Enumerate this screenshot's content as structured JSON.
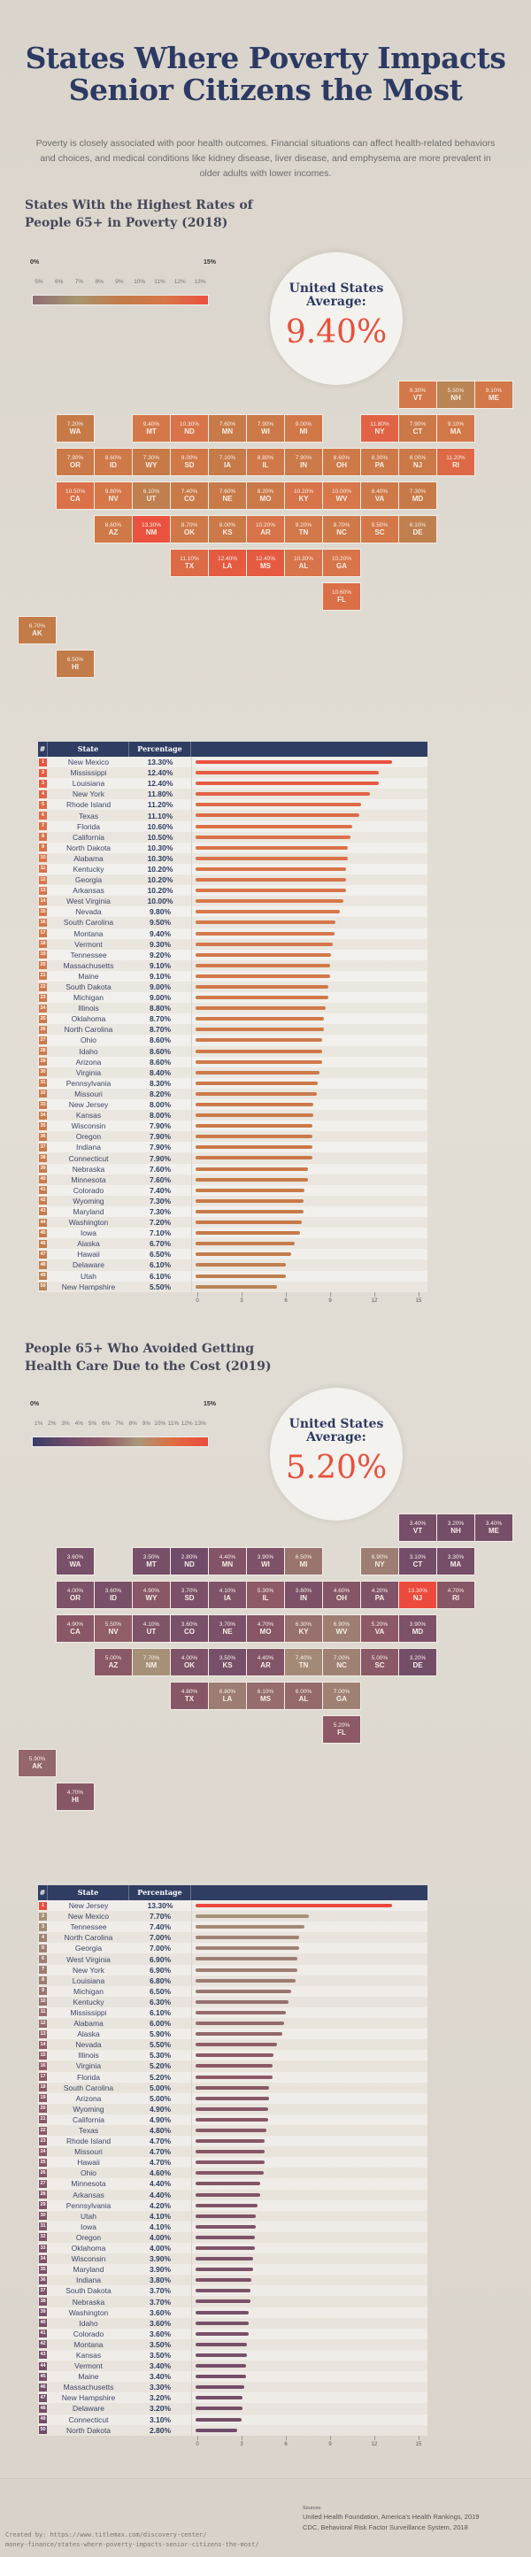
{
  "title": "States Where Poverty Impacts Senior Citizens the Most",
  "intro": "Poverty is closely associated with poor health outcomes. Financial situations can affect health-related behaviors and choices, and medical conditions like kidney disease, liver disease, and emphysema are more prevalent in older adults with lower incomes.",
  "colors": {
    "background": "#dfdad2",
    "title": "#2c3a63",
    "table_header": "#2f3d62",
    "highlight": "#e8503d"
  },
  "chart_data": [
    {
      "type": "table",
      "title": "States With the Highest Rates of People 65+ in Poverty (2018)",
      "average_label": "United States Average:",
      "average_value": "9.40%",
      "legend": {
        "min_label": "0%",
        "max_label": "15%",
        "ticks": [
          "5%",
          "6%",
          "7%",
          "8%",
          "9%",
          "10%",
          "11%",
          "12%",
          "13%"
        ],
        "colors": [
          "#8f6e73",
          "#a8956f",
          "#c37b48",
          "#d7774a",
          "#ea513f"
        ]
      },
      "columns": [
        "#",
        "State",
        "Percentage"
      ],
      "axis_ticks": [
        0,
        3,
        6,
        9,
        12,
        15
      ],
      "xlim": [
        0,
        15
      ],
      "rows": [
        {
          "rank": 1,
          "state": "New Mexico",
          "abbr": "NM",
          "value": 13.3,
          "label": "13.30%"
        },
        {
          "rank": 2,
          "state": "Mississippi",
          "abbr": "MS",
          "value": 12.4,
          "label": "12.40%"
        },
        {
          "rank": 3,
          "state": "Louisiana",
          "abbr": "LA",
          "value": 12.4,
          "label": "12.40%"
        },
        {
          "rank": 4,
          "state": "New York",
          "abbr": "NY",
          "value": 11.8,
          "label": "11.80%"
        },
        {
          "rank": 5,
          "state": "Rhode Island",
          "abbr": "RI",
          "value": 11.2,
          "label": "11.20%"
        },
        {
          "rank": 6,
          "state": "Texas",
          "abbr": "TX",
          "value": 11.1,
          "label": "11.10%"
        },
        {
          "rank": 7,
          "state": "Florida",
          "abbr": "FL",
          "value": 10.6,
          "label": "10.60%"
        },
        {
          "rank": 8,
          "state": "California",
          "abbr": "CA",
          "value": 10.5,
          "label": "10.50%"
        },
        {
          "rank": 9,
          "state": "North Dakota",
          "abbr": "ND",
          "value": 10.3,
          "label": "10.30%"
        },
        {
          "rank": 10,
          "state": "Alabama",
          "abbr": "AL",
          "value": 10.3,
          "label": "10.30%"
        },
        {
          "rank": 11,
          "state": "Kentucky",
          "abbr": "KY",
          "value": 10.2,
          "label": "10.20%"
        },
        {
          "rank": 12,
          "state": "Georgia",
          "abbr": "GA",
          "value": 10.2,
          "label": "10.20%"
        },
        {
          "rank": 13,
          "state": "Arkansas",
          "abbr": "AR",
          "value": 10.2,
          "label": "10.20%"
        },
        {
          "rank": 14,
          "state": "West Virginia",
          "abbr": "WV",
          "value": 10.0,
          "label": "10.00%"
        },
        {
          "rank": 15,
          "state": "Nevada",
          "abbr": "NV",
          "value": 9.8,
          "label": "9.80%"
        },
        {
          "rank": 16,
          "state": "South Carolina",
          "abbr": "SC",
          "value": 9.5,
          "label": "9.50%"
        },
        {
          "rank": 17,
          "state": "Montana",
          "abbr": "MT",
          "value": 9.4,
          "label": "9.40%"
        },
        {
          "rank": 18,
          "state": "Vermont",
          "abbr": "VT",
          "value": 9.3,
          "label": "9.30%"
        },
        {
          "rank": 19,
          "state": "Tennessee",
          "abbr": "TN",
          "value": 9.2,
          "label": "9.20%"
        },
        {
          "rank": 20,
          "state": "Massachusetts",
          "abbr": "MA",
          "value": 9.1,
          "label": "9.10%"
        },
        {
          "rank": 21,
          "state": "Maine",
          "abbr": "ME",
          "value": 9.1,
          "label": "9.10%"
        },
        {
          "rank": 22,
          "state": "South Dakota",
          "abbr": "SD",
          "value": 9.0,
          "label": "9.00%"
        },
        {
          "rank": 23,
          "state": "Michigan",
          "abbr": "MI",
          "value": 9.0,
          "label": "9.00%"
        },
        {
          "rank": 24,
          "state": "Illinois",
          "abbr": "IL",
          "value": 8.8,
          "label": "8.80%"
        },
        {
          "rank": 25,
          "state": "Oklahoma",
          "abbr": "OK",
          "value": 8.7,
          "label": "8.70%"
        },
        {
          "rank": 26,
          "state": "North Carolina",
          "abbr": "NC",
          "value": 8.7,
          "label": "8.70%"
        },
        {
          "rank": 27,
          "state": "Ohio",
          "abbr": "OH",
          "value": 8.6,
          "label": "8.60%"
        },
        {
          "rank": 28,
          "state": "Idaho",
          "abbr": "ID",
          "value": 8.6,
          "label": "8.60%"
        },
        {
          "rank": 29,
          "state": "Arizona",
          "abbr": "AZ",
          "value": 8.6,
          "label": "8.60%"
        },
        {
          "rank": 30,
          "state": "Virginia",
          "abbr": "VA",
          "value": 8.4,
          "label": "8.40%"
        },
        {
          "rank": 31,
          "state": "Pennsylvania",
          "abbr": "PA",
          "value": 8.3,
          "label": "8.30%"
        },
        {
          "rank": 32,
          "state": "Missouri",
          "abbr": "MO",
          "value": 8.2,
          "label": "8.20%"
        },
        {
          "rank": 33,
          "state": "New Jersey",
          "abbr": "NJ",
          "value": 8.0,
          "label": "8.00%"
        },
        {
          "rank": 34,
          "state": "Kansas",
          "abbr": "KS",
          "value": 8.0,
          "label": "8.00%"
        },
        {
          "rank": 35,
          "state": "Wisconsin",
          "abbr": "WI",
          "value": 7.9,
          "label": "7.90%"
        },
        {
          "rank": 36,
          "state": "Oregon",
          "abbr": "OR",
          "value": 7.9,
          "label": "7.90%"
        },
        {
          "rank": 37,
          "state": "Indiana",
          "abbr": "IN",
          "value": 7.9,
          "label": "7.90%"
        },
        {
          "rank": 38,
          "state": "Connecticut",
          "abbr": "CT",
          "value": 7.9,
          "label": "7.90%"
        },
        {
          "rank": 39,
          "state": "Nebraska",
          "abbr": "NE",
          "value": 7.6,
          "label": "7.60%"
        },
        {
          "rank": 40,
          "state": "Minnesota",
          "abbr": "MN",
          "value": 7.6,
          "label": "7.60%"
        },
        {
          "rank": 41,
          "state": "Colorado",
          "abbr": "CO",
          "value": 7.4,
          "label": "7.40%"
        },
        {
          "rank": 42,
          "state": "Wyoming",
          "abbr": "WY",
          "value": 7.3,
          "label": "7.30%"
        },
        {
          "rank": 43,
          "state": "Maryland",
          "abbr": "MD",
          "value": 7.3,
          "label": "7.30%"
        },
        {
          "rank": 44,
          "state": "Washington",
          "abbr": "WA",
          "value": 7.2,
          "label": "7.20%"
        },
        {
          "rank": 45,
          "state": "Iowa",
          "abbr": "IA",
          "value": 7.1,
          "label": "7.10%"
        },
        {
          "rank": 46,
          "state": "Alaska",
          "abbr": "AK",
          "value": 6.7,
          "label": "6.70%"
        },
        {
          "rank": 47,
          "state": "Hawaii",
          "abbr": "HI",
          "value": 6.5,
          "label": "6.50%"
        },
        {
          "rank": 48,
          "state": "Delaware",
          "abbr": "DE",
          "value": 6.1,
          "label": "6.10%"
        },
        {
          "rank": 49,
          "state": "Utah",
          "abbr": "UT",
          "value": 6.1,
          "label": "6.10%"
        },
        {
          "rank": 50,
          "state": "New Hampshire",
          "abbr": "NH",
          "value": 5.5,
          "label": "5.50%"
        }
      ]
    },
    {
      "type": "table",
      "title": "People 65+ Who Avoided Getting Health Care Due to the Cost (2019)",
      "average_label": "United States Average:",
      "average_value": "5.20%",
      "legend": {
        "min_label": "0%",
        "max_label": "15%",
        "ticks": [
          "1%",
          "2%",
          "3%",
          "4%",
          "5%",
          "6%",
          "7%",
          "8%",
          "9%",
          "10%",
          "11%",
          "12%",
          "13%"
        ],
        "colors": [
          "#3a3d66",
          "#6e4a6a",
          "#8e5a66",
          "#a9977a",
          "#e06c40",
          "#ec4a3d"
        ]
      },
      "columns": [
        "#",
        "State",
        "Percentage"
      ],
      "axis_ticks": [
        0,
        3,
        6,
        9,
        12,
        15
      ],
      "xlim": [
        0,
        15
      ],
      "rows": [
        {
          "rank": 1,
          "state": "New Jersey",
          "abbr": "NJ",
          "value": 13.3,
          "label": "13.30%"
        },
        {
          "rank": 2,
          "state": "New Mexico",
          "abbr": "NM",
          "value": 7.7,
          "label": "7.70%"
        },
        {
          "rank": 3,
          "state": "Tennessee",
          "abbr": "TN",
          "value": 7.4,
          "label": "7.40%"
        },
        {
          "rank": 4,
          "state": "North Carolina",
          "abbr": "NC",
          "value": 7.0,
          "label": "7.00%"
        },
        {
          "rank": 5,
          "state": "Georgia",
          "abbr": "GA",
          "value": 7.0,
          "label": "7.00%"
        },
        {
          "rank": 6,
          "state": "West Virginia",
          "abbr": "WV",
          "value": 6.9,
          "label": "6.90%"
        },
        {
          "rank": 7,
          "state": "New York",
          "abbr": "NY",
          "value": 6.9,
          "label": "6.90%"
        },
        {
          "rank": 8,
          "state": "Louisiana",
          "abbr": "LA",
          "value": 6.8,
          "label": "6.80%"
        },
        {
          "rank": 9,
          "state": "Michigan",
          "abbr": "MI",
          "value": 6.5,
          "label": "6.50%"
        },
        {
          "rank": 10,
          "state": "Kentucky",
          "abbr": "KY",
          "value": 6.3,
          "label": "6.30%"
        },
        {
          "rank": 11,
          "state": "Mississippi",
          "abbr": "MS",
          "value": 6.1,
          "label": "6.10%"
        },
        {
          "rank": 12,
          "state": "Alabama",
          "abbr": "AL",
          "value": 6.0,
          "label": "6.00%"
        },
        {
          "rank": 13,
          "state": "Alaska",
          "abbr": "AK",
          "value": 5.9,
          "label": "5.90%"
        },
        {
          "rank": 14,
          "state": "Nevada",
          "abbr": "NV",
          "value": 5.5,
          "label": "5.50%"
        },
        {
          "rank": 15,
          "state": "Illinois",
          "abbr": "IL",
          "value": 5.3,
          "label": "5.30%"
        },
        {
          "rank": 16,
          "state": "Virginia",
          "abbr": "VA",
          "value": 5.2,
          "label": "5.20%"
        },
        {
          "rank": 17,
          "state": "Florida",
          "abbr": "FL",
          "value": 5.2,
          "label": "5.20%"
        },
        {
          "rank": 18,
          "state": "South Carolina",
          "abbr": "SC",
          "value": 5.0,
          "label": "5.00%"
        },
        {
          "rank": 19,
          "state": "Arizona",
          "abbr": "AZ",
          "value": 5.0,
          "label": "5.00%"
        },
        {
          "rank": 20,
          "state": "Wyoming",
          "abbr": "WY",
          "value": 4.9,
          "label": "4.90%"
        },
        {
          "rank": 21,
          "state": "California",
          "abbr": "CA",
          "value": 4.9,
          "label": "4.90%"
        },
        {
          "rank": 22,
          "state": "Texas",
          "abbr": "TX",
          "value": 4.8,
          "label": "4.80%"
        },
        {
          "rank": 23,
          "state": "Rhode Island",
          "abbr": "RI",
          "value": 4.7,
          "label": "4.70%"
        },
        {
          "rank": 24,
          "state": "Missouri",
          "abbr": "MO",
          "value": 4.7,
          "label": "4.70%"
        },
        {
          "rank": 25,
          "state": "Hawaii",
          "abbr": "HI",
          "value": 4.7,
          "label": "4.70%"
        },
        {
          "rank": 26,
          "state": "Ohio",
          "abbr": "OH",
          "value": 4.6,
          "label": "4.60%"
        },
        {
          "rank": 27,
          "state": "Minnesota",
          "abbr": "MN",
          "value": 4.4,
          "label": "4.40%"
        },
        {
          "rank": 28,
          "state": "Arkansas",
          "abbr": "AR",
          "value": 4.4,
          "label": "4.40%"
        },
        {
          "rank": 29,
          "state": "Pennsylvania",
          "abbr": "PA",
          "value": 4.2,
          "label": "4.20%"
        },
        {
          "rank": 30,
          "state": "Utah",
          "abbr": "UT",
          "value": 4.1,
          "label": "4.10%"
        },
        {
          "rank": 31,
          "state": "Iowa",
          "abbr": "IA",
          "value": 4.1,
          "label": "4.10%"
        },
        {
          "rank": 32,
          "state": "Oregon",
          "abbr": "OR",
          "value": 4.0,
          "label": "4.00%"
        },
        {
          "rank": 33,
          "state": "Oklahoma",
          "abbr": "OK",
          "value": 4.0,
          "label": "4.00%"
        },
        {
          "rank": 34,
          "state": "Wisconsin",
          "abbr": "WI",
          "value": 3.9,
          "label": "3.90%"
        },
        {
          "rank": 35,
          "state": "Maryland",
          "abbr": "MD",
          "value": 3.9,
          "label": "3.90%"
        },
        {
          "rank": 36,
          "state": "Indiana",
          "abbr": "IN",
          "value": 3.8,
          "label": "3.80%"
        },
        {
          "rank": 37,
          "state": "South Dakota",
          "abbr": "SD",
          "value": 3.7,
          "label": "3.70%"
        },
        {
          "rank": 38,
          "state": "Nebraska",
          "abbr": "NE",
          "value": 3.7,
          "label": "3.70%"
        },
        {
          "rank": 39,
          "state": "Washington",
          "abbr": "WA",
          "value": 3.6,
          "label": "3.60%"
        },
        {
          "rank": 40,
          "state": "Idaho",
          "abbr": "ID",
          "value": 3.6,
          "label": "3.60%"
        },
        {
          "rank": 41,
          "state": "Colorado",
          "abbr": "CO",
          "value": 3.6,
          "label": "3.60%"
        },
        {
          "rank": 42,
          "state": "Montana",
          "abbr": "MT",
          "value": 3.5,
          "label": "3.50%"
        },
        {
          "rank": 43,
          "state": "Kansas",
          "abbr": "KS",
          "value": 3.5,
          "label": "3.50%"
        },
        {
          "rank": 44,
          "state": "Vermont",
          "abbr": "VT",
          "value": 3.4,
          "label": "3.40%"
        },
        {
          "rank": 45,
          "state": "Maine",
          "abbr": "ME",
          "value": 3.4,
          "label": "3.40%"
        },
        {
          "rank": 46,
          "state": "Massachusetts",
          "abbr": "MA",
          "value": 3.3,
          "label": "3.30%"
        },
        {
          "rank": 47,
          "state": "New Hampshire",
          "abbr": "NH",
          "value": 3.2,
          "label": "3.20%"
        },
        {
          "rank": 48,
          "state": "Delaware",
          "abbr": "DE",
          "value": 3.2,
          "label": "3.20%"
        },
        {
          "rank": 49,
          "state": "Connecticut",
          "abbr": "CT",
          "value": 3.1,
          "label": "3.10%"
        },
        {
          "rank": 50,
          "state": "North Dakota",
          "abbr": "ND",
          "value": 2.8,
          "label": "2.80%"
        }
      ]
    }
  ],
  "footer": {
    "created_by": "Created by: https://www.titlemax.com/discovery-center/\nmoney-finance/states-where-poverty-impacts-senior-citizens-the-most/",
    "sources_heading": "Sources:",
    "sources": [
      "United Health Foundation, America's Health Rankings, 2019",
      "CDC, Behavioral Risk Factor Surveillance System, 2018"
    ]
  }
}
